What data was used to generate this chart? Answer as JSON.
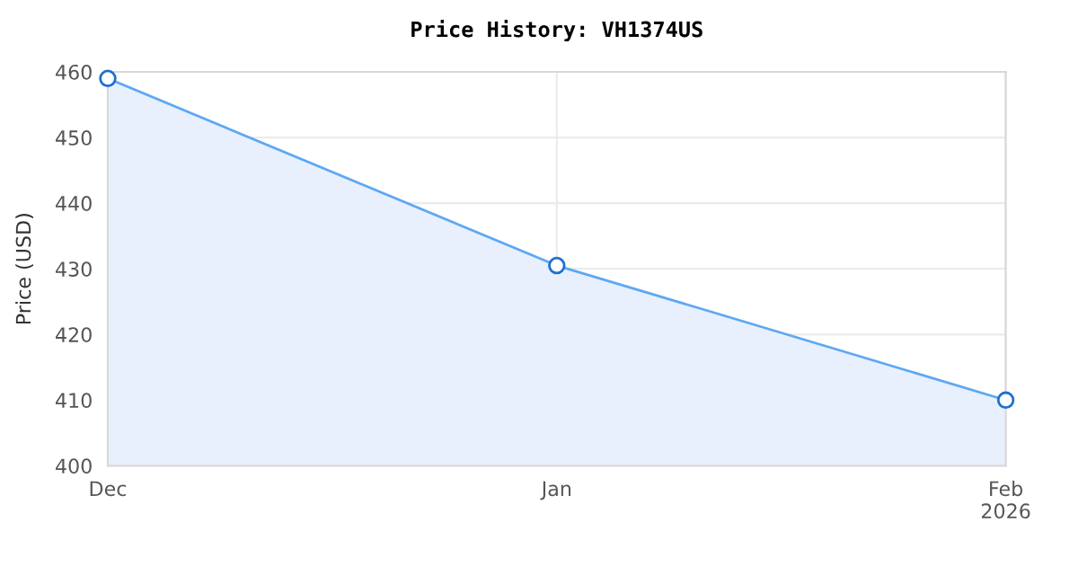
{
  "chart_data": {
    "type": "area",
    "title": "Price History: VH1374US",
    "ylabel": "Price (USD)",
    "x": [
      "2025-12-01",
      "2026-01-01",
      "2026-02-01"
    ],
    "series": [
      {
        "color": "#5ea8f2",
        "values": [
          459,
          430.5,
          410
        ]
      }
    ],
    "xlim": [
      "2025-12-01",
      "2026-02-01"
    ],
    "xticks": [
      {
        "value": "2025-12-01",
        "label": "Dec"
      },
      {
        "value": "2026-01-01",
        "label": "Jan"
      },
      {
        "value": "2026-02-01",
        "label": "Feb\n2026"
      }
    ],
    "ylim": [
      400,
      460
    ],
    "yticks": [
      400,
      410,
      420,
      430,
      440,
      450,
      460
    ],
    "grid": true,
    "marker": "circle",
    "line_style": "solid"
  }
}
